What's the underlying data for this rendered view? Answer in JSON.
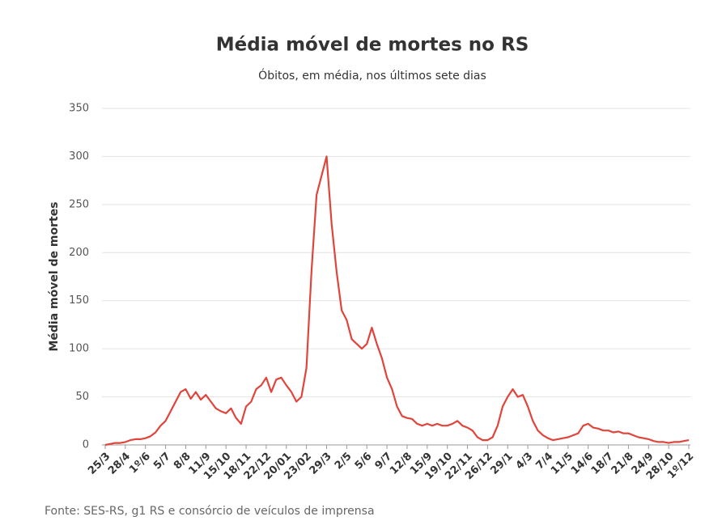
{
  "chart_data": {
    "type": "line",
    "title": "Média móvel de mortes no RS",
    "subtitle": "Óbitos, em média, nos últimos sete dias",
    "y_label": "Média móvel de mortes",
    "source": "Fonte: SES-RS, g1 RS e consórcio de veículos de imprensa",
    "categories": [
      "25/3",
      null,
      null,
      null,
      "28/4",
      null,
      null,
      null,
      "1º/6",
      null,
      null,
      null,
      "5/7",
      null,
      null,
      null,
      "8/8",
      null,
      null,
      null,
      "11/9",
      null,
      null,
      null,
      "15/10",
      null,
      null,
      null,
      "18/11",
      null,
      null,
      null,
      "22/12",
      null,
      null,
      null,
      "20/01",
      null,
      null,
      null,
      "23/02",
      null,
      null,
      null,
      "29/3",
      null,
      null,
      null,
      "2/5",
      null,
      null,
      null,
      "5/6",
      null,
      null,
      null,
      "9/7",
      null,
      null,
      null,
      "12/8",
      null,
      null,
      null,
      "15/9",
      null,
      null,
      null,
      "19/10",
      null,
      null,
      null,
      "22/11",
      null,
      null,
      null,
      "26/12",
      null,
      null,
      null,
      "29/1",
      null,
      null,
      null,
      "4/3",
      null,
      null,
      null,
      "7/4",
      null,
      null,
      null,
      "11/5",
      null,
      null,
      null,
      "14/6",
      null,
      null,
      null,
      "18/7",
      null,
      null,
      null,
      "21/8",
      null,
      null,
      null,
      "24/9",
      null,
      null,
      null,
      "28/10",
      null,
      null,
      null,
      "1º/12"
    ],
    "series": [
      {
        "name": "Média móvel",
        "color": "#e0443a",
        "values": [
          0,
          1,
          2,
          2,
          3,
          5,
          6,
          6,
          7,
          9,
          13,
          20,
          25,
          35,
          45,
          55,
          58,
          48,
          55,
          47,
          52,
          45,
          38,
          35,
          33,
          38,
          28,
          22,
          40,
          45,
          58,
          62,
          70,
          55,
          68,
          70,
          62,
          55,
          45,
          50,
          80,
          180,
          260,
          280,
          300,
          230,
          180,
          140,
          130,
          110,
          105,
          100,
          105,
          122,
          105,
          90,
          70,
          58,
          40,
          30,
          28,
          27,
          22,
          20,
          22,
          20,
          22,
          20,
          20,
          22,
          25,
          20,
          18,
          15,
          8,
          5,
          5,
          8,
          20,
          40,
          50,
          58,
          50,
          52,
          40,
          25,
          15,
          10,
          7,
          5,
          6,
          7,
          8,
          10,
          12,
          20,
          22,
          18,
          17,
          15,
          15,
          13,
          14,
          12,
          12,
          10,
          8,
          7,
          6,
          4,
          3,
          3,
          2,
          3,
          3,
          4,
          5
        ]
      }
    ],
    "ylim": [
      0,
      350
    ],
    "yticks": [
      0,
      50,
      100,
      150,
      200,
      250,
      300,
      350
    ],
    "grid": true
  }
}
